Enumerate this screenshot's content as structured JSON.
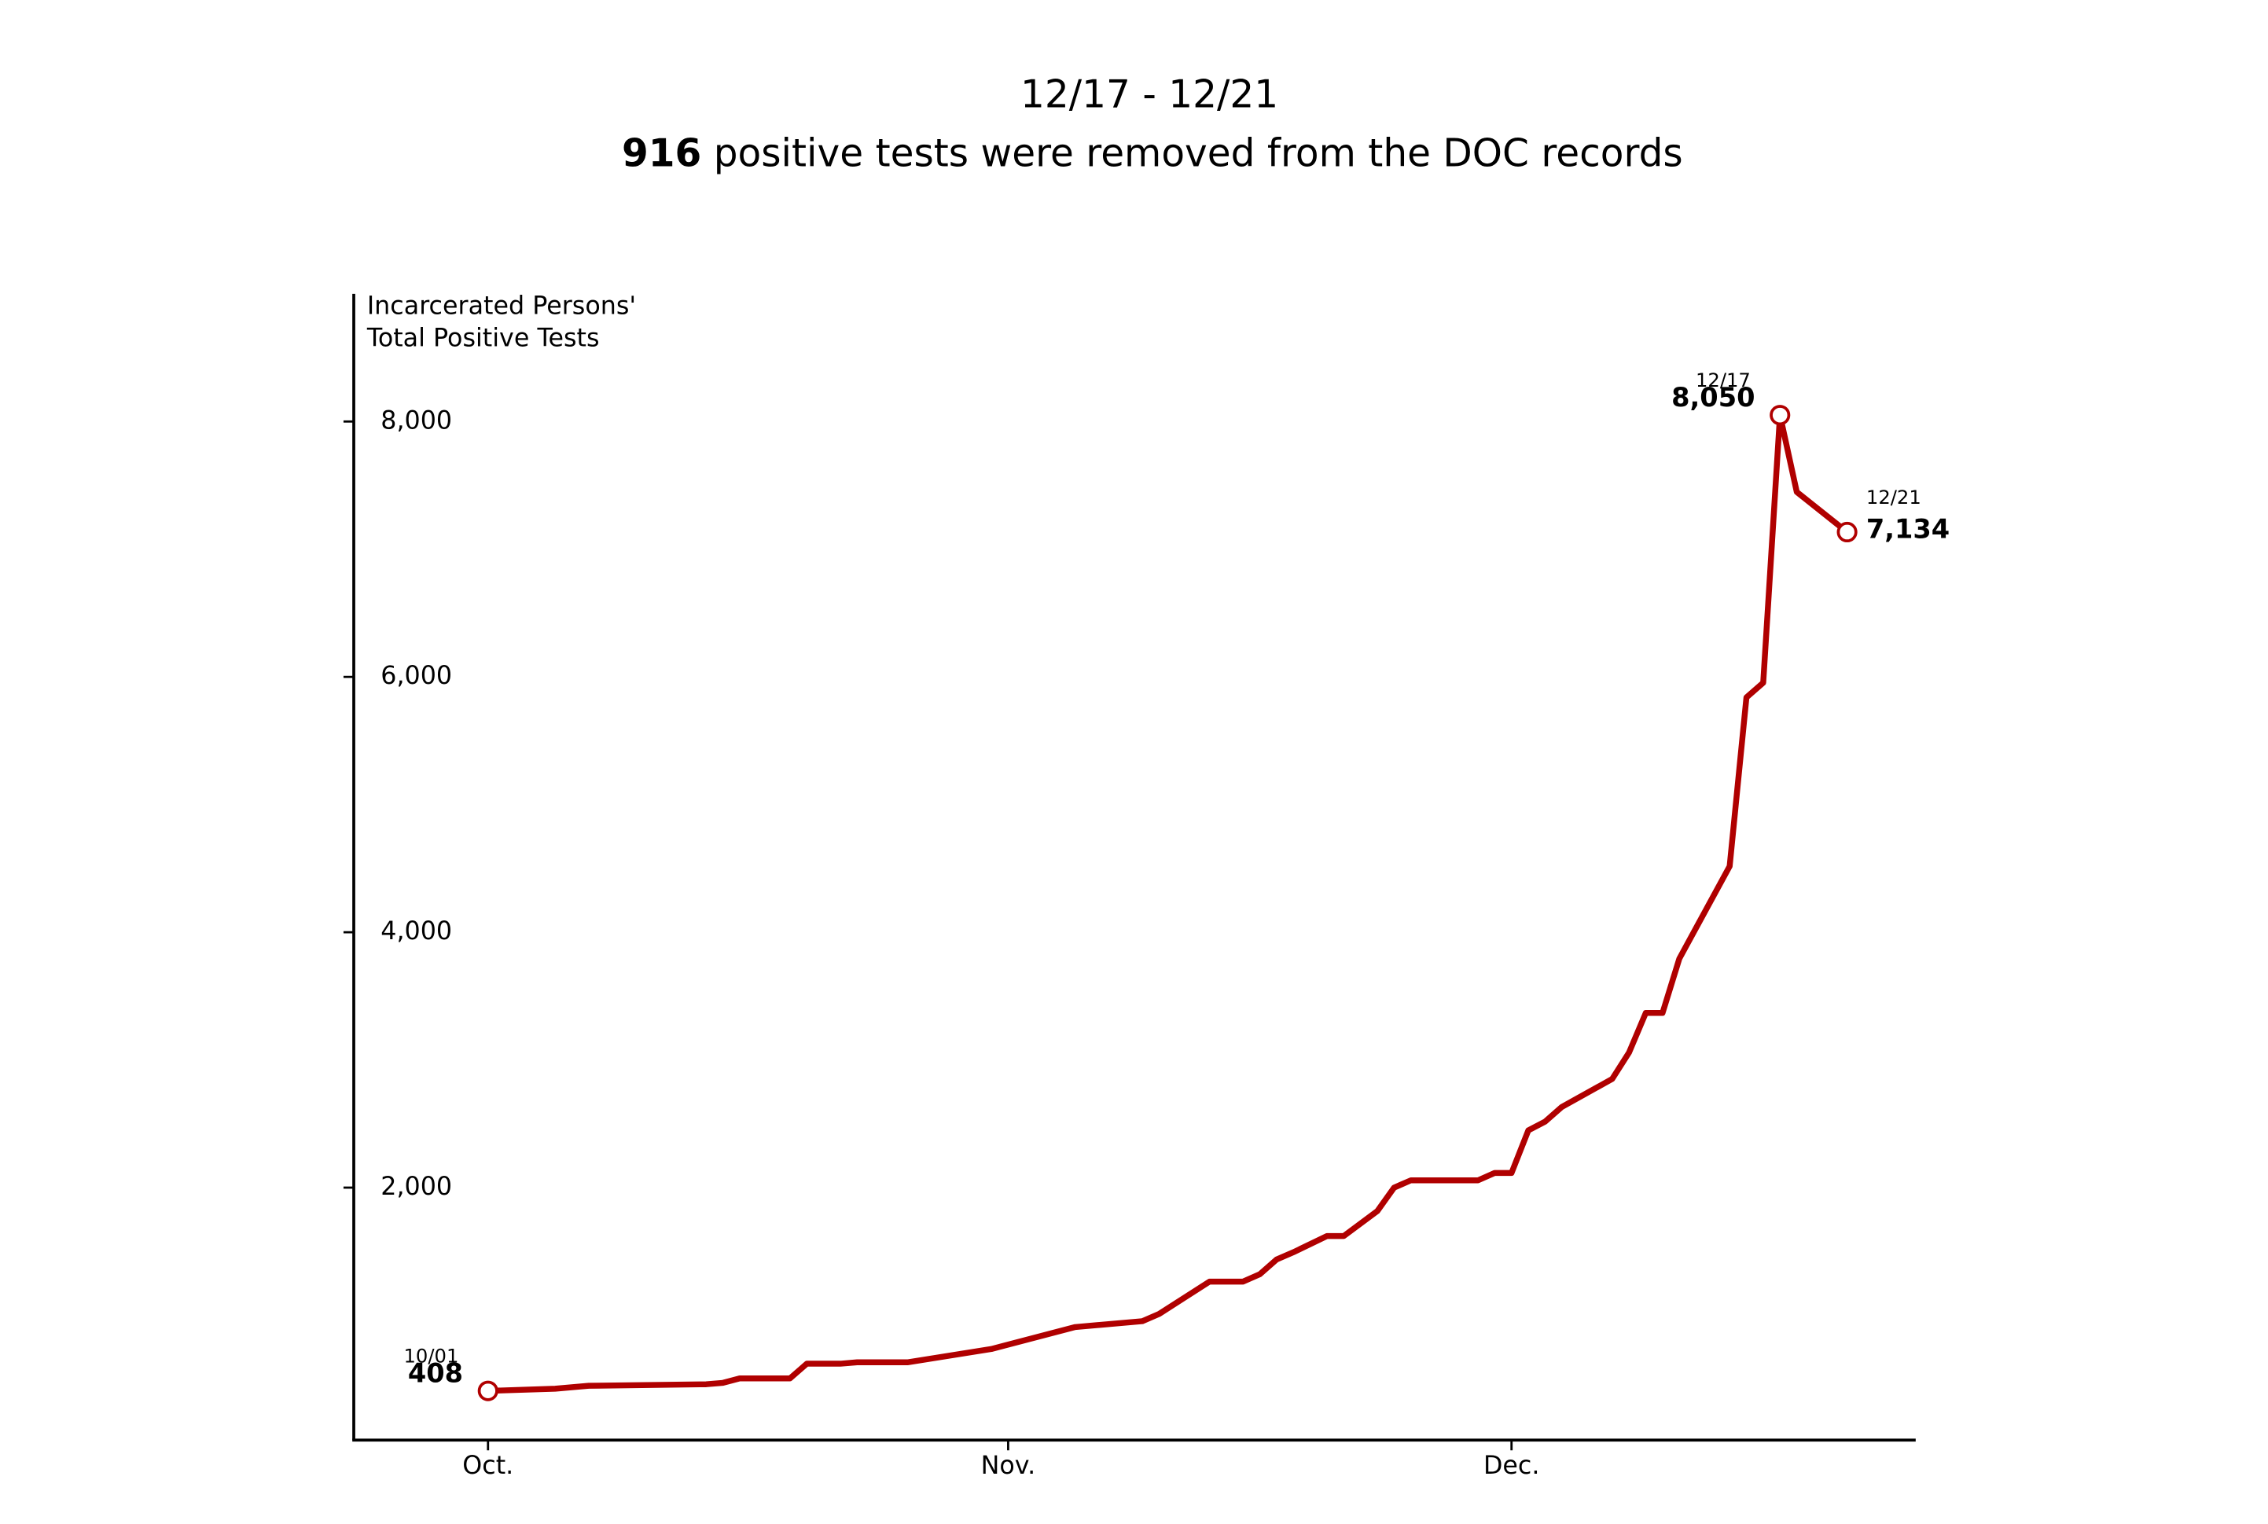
{
  "chart_data": {
    "type": "line",
    "title": "12/17 - 12/21",
    "subtitle": {
      "bold": "916",
      "text": " positive tests were removed from the DOC records"
    },
    "ylabel": [
      "Incarcerated Persons'",
      "Total Positive Tests"
    ],
    "color": "#b00000",
    "x": [
      "10/01",
      "10/05",
      "10/07",
      "10/14",
      "10/15",
      "10/16",
      "10/19",
      "10/20",
      "10/22",
      "10/23",
      "10/26",
      "10/31",
      "11/05",
      "11/09",
      "11/10",
      "11/13",
      "11/15",
      "11/16",
      "11/17",
      "11/18",
      "11/20",
      "11/21",
      "11/23",
      "11/24",
      "11/25",
      "11/29",
      "11/30",
      "12/01",
      "12/02",
      "12/03",
      "12/04",
      "12/07",
      "12/08",
      "12/09",
      "12/10",
      "12/11",
      "12/14",
      "12/15",
      "12/16",
      "12/17",
      "12/18",
      "12/21"
    ],
    "values": [
      408,
      425,
      448,
      460,
      471,
      506,
      506,
      621,
      621,
      632,
      632,
      736,
      908,
      954,
      1011,
      1264,
      1264,
      1322,
      1437,
      1494,
      1621,
      1621,
      1816,
      2000,
      2057,
      2057,
      2115,
      2115,
      2448,
      2517,
      2632,
      2851,
      3057,
      3368,
      3368,
      3793,
      4517,
      5839,
      5954,
      8050,
      7448,
      7134
    ],
    "xlim": [
      "09/23",
      "12/25"
    ],
    "xticks": [
      {
        "value": "10/01",
        "label": "Oct."
      },
      {
        "value": "11/01",
        "label": "Nov."
      },
      {
        "value": "12/01",
        "label": "Dec."
      }
    ],
    "ylim": [
      0,
      9000
    ],
    "yticks": [
      {
        "value": 2000,
        "label": "2,000"
      },
      {
        "value": 4000,
        "label": "4,000"
      },
      {
        "value": 6000,
        "label": "6,000"
      },
      {
        "value": 8000,
        "label": "8,000"
      }
    ],
    "annotations": [
      {
        "x": "10/01",
        "label": "408",
        "color": "#000000",
        "side": "left"
      },
      {
        "x": "12/17",
        "label": "8,050",
        "color": "#000000",
        "side": "left"
      },
      {
        "x": "12/21",
        "label": "7,134",
        "color": "#b00000",
        "side": "right"
      }
    ]
  }
}
